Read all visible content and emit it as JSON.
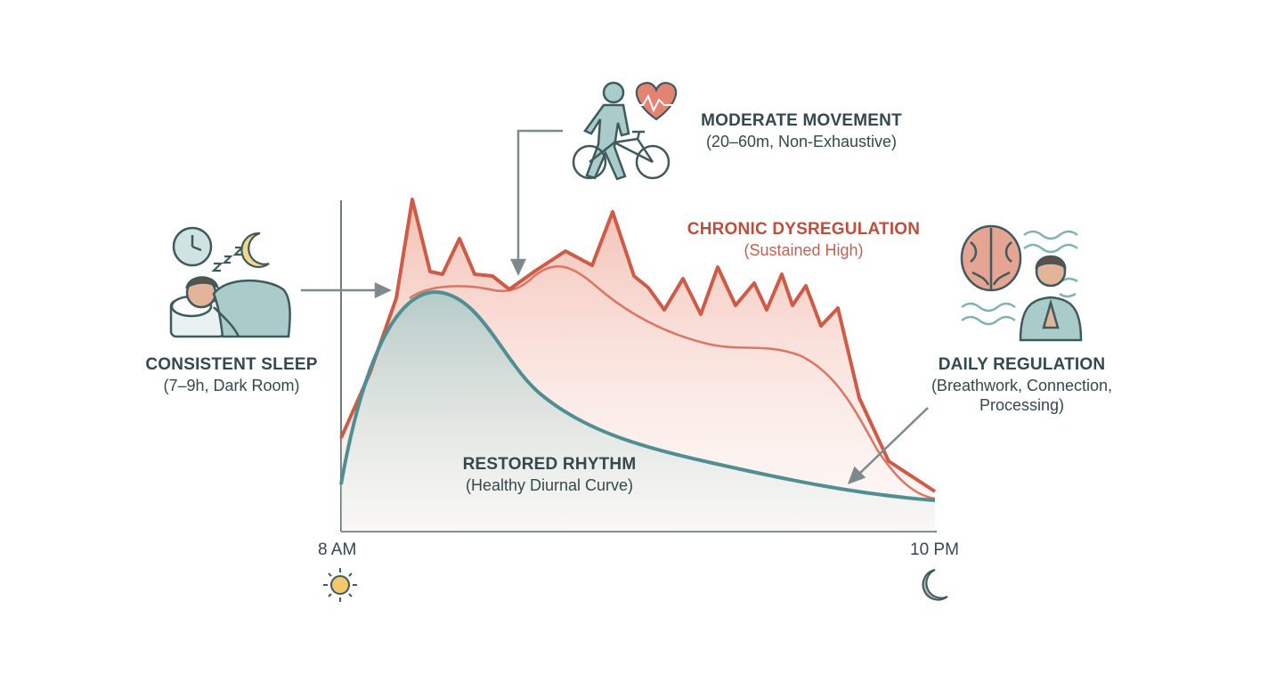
{
  "time_axis": {
    "start": "8 AM",
    "end": "10 PM"
  },
  "labels": {
    "sleep": {
      "title": "CONSISTENT SLEEP",
      "subtitle": "(7–9h, Dark Room)"
    },
    "movement": {
      "title": "MODERATE MOVEMENT",
      "subtitle": "(20–60m, Non-Exhaustive)"
    },
    "dysregulation": {
      "title": "CHRONIC DYSREGULATION",
      "subtitle": "(Sustained High)"
    },
    "restored": {
      "title": "RESTORED RHYTHM",
      "subtitle": "(Healthy Diurnal Curve)"
    },
    "regulation": {
      "title": "DAILY REGULATION",
      "subtitle_line1": "(Breathwork, Connection,",
      "subtitle_line2": "Processing)"
    }
  },
  "icons": [
    "clock-icon",
    "sleep-zzz-icon",
    "crescent-moon-icon",
    "sleeping-person-icon",
    "walking-person-icon",
    "bicycle-icon",
    "heart-pulse-icon",
    "brain-icon",
    "breathing-person-icon",
    "wave-lines-icon",
    "sun-icon",
    "moon-icon"
  ],
  "colors": {
    "dysregulation": "#cf5a45",
    "restored": "#4f8f94",
    "axis": "#6b7b7e",
    "text": "#33494d",
    "accent_red": "#bf4d3c",
    "icon_fill": "#a9cccb",
    "icon_stroke": "#3f5a5d",
    "sun": "#f2c86a"
  }
}
